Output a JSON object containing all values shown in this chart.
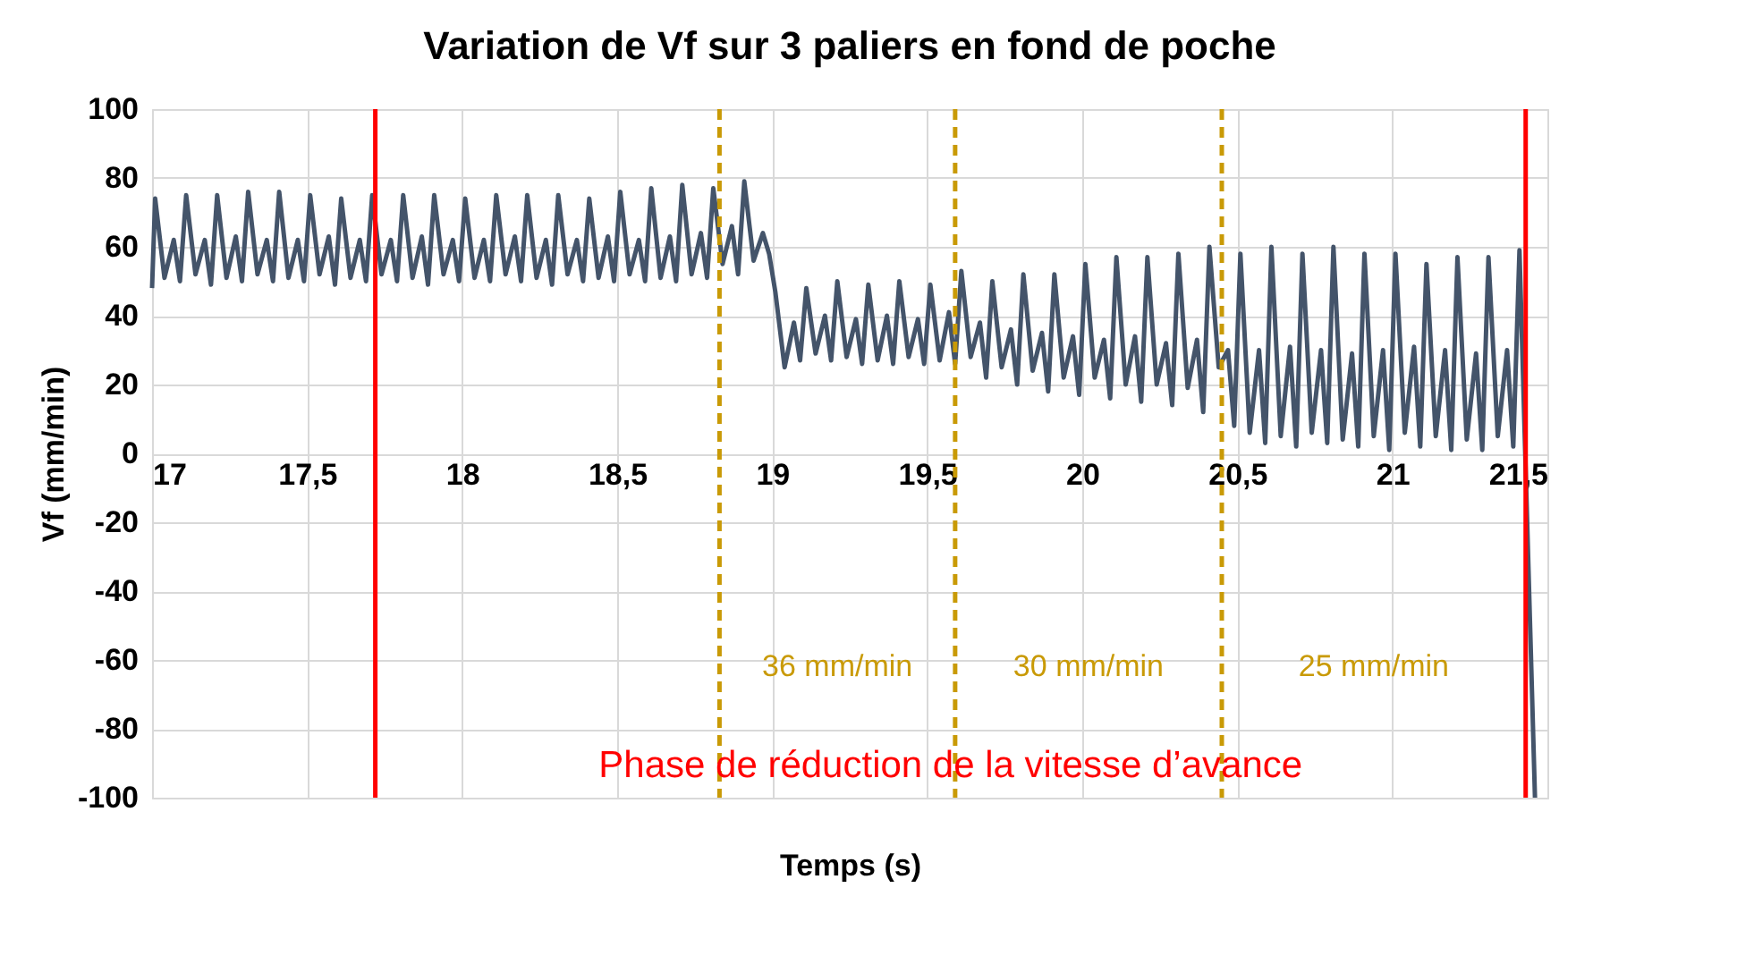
{
  "chart_data": {
    "type": "line",
    "title": "Variation de Vf sur 3 paliers en fond de poche",
    "xlabel": "Temps (s)",
    "ylabel": "Vf (mm/min)",
    "xlim": [
      17,
      21.5
    ],
    "xticks": [
      17,
      {
        "value": 17.5,
        "label": "17,5"
      },
      18,
      {
        "value": 18.5,
        "label": "18,5"
      },
      19,
      {
        "value": 19.5,
        "label": "19,5"
      },
      20,
      {
        "value": 20.5,
        "label": "20,5"
      },
      21,
      {
        "value": 21.5,
        "label": "21,5"
      }
    ],
    "ylim": [
      -100,
      100
    ],
    "yticks": [
      -100,
      -80,
      -60,
      -40,
      -20,
      0,
      20,
      40,
      60,
      80,
      100
    ],
    "grid": true,
    "line_style": "solid",
    "marker": "none",
    "series": [
      {
        "color": "#44546a",
        "x": [
          17.0,
          17.01,
          17.04,
          17.07,
          17.09,
          17.11,
          17.14,
          17.17,
          17.19,
          17.21,
          17.24,
          17.27,
          17.29,
          17.31,
          17.34,
          17.37,
          17.39,
          17.41,
          17.44,
          17.47,
          17.49,
          17.51,
          17.54,
          17.57,
          17.59,
          17.61,
          17.64,
          17.67,
          17.69,
          17.71,
          17.74,
          17.77,
          17.79,
          17.81,
          17.84,
          17.87,
          17.89,
          17.91,
          17.94,
          17.97,
          17.99,
          18.01,
          18.04,
          18.07,
          18.09,
          18.11,
          18.14,
          18.17,
          18.19,
          18.21,
          18.24,
          18.27,
          18.29,
          18.31,
          18.34,
          18.37,
          18.39,
          18.41,
          18.44,
          18.47,
          18.49,
          18.51,
          18.54,
          18.57,
          18.59,
          18.61,
          18.64,
          18.67,
          18.69,
          18.71,
          18.74,
          18.77,
          18.79,
          18.81,
          18.84,
          18.87,
          18.89,
          18.91,
          18.94,
          18.97,
          18.99,
          19.01,
          19.04,
          19.07,
          19.09,
          19.11,
          19.14,
          19.17,
          19.19,
          19.21,
          19.24,
          19.27,
          19.29,
          19.31,
          19.34,
          19.37,
          19.39,
          19.41,
          19.44,
          19.47,
          19.49,
          19.51,
          19.54,
          19.57,
          19.59,
          19.61,
          19.64,
          19.67,
          19.69,
          19.71,
          19.74,
          19.77,
          19.79,
          19.81,
          19.84,
          19.87,
          19.89,
          19.91,
          19.94,
          19.97,
          19.99,
          20.01,
          20.04,
          20.07,
          20.09,
          20.11,
          20.14,
          20.17,
          20.19,
          20.21,
          20.24,
          20.27,
          20.29,
          20.31,
          20.34,
          20.37,
          20.39,
          20.41,
          20.44,
          20.47,
          20.49,
          20.51,
          20.54,
          20.57,
          20.59,
          20.61,
          20.64,
          20.67,
          20.69,
          20.71,
          20.74,
          20.77,
          20.79,
          20.81,
          20.84,
          20.87,
          20.89,
          20.91,
          20.94,
          20.97,
          20.99,
          21.01,
          21.04,
          21.07,
          21.09,
          21.11,
          21.14,
          21.17,
          21.19,
          21.21,
          21.24,
          21.27,
          21.29,
          21.31,
          21.34,
          21.37,
          21.39,
          21.41,
          21.46
        ],
        "values": [
          48,
          74,
          51,
          62,
          50,
          75,
          52,
          62,
          49,
          75,
          51,
          63,
          50,
          76,
          52,
          62,
          50,
          76,
          51,
          62,
          50,
          75,
          52,
          63,
          49,
          74,
          51,
          62,
          50,
          75,
          52,
          62,
          50,
          75,
          51,
          63,
          49,
          75,
          52,
          62,
          50,
          74,
          51,
          62,
          50,
          75,
          52,
          63,
          50,
          75,
          51,
          62,
          49,
          75,
          52,
          62,
          50,
          74,
          51,
          63,
          50,
          76,
          52,
          62,
          50,
          77,
          51,
          63,
          50,
          78,
          52,
          64,
          51,
          77,
          55,
          66,
          52,
          79,
          56,
          64,
          58,
          47,
          25,
          38,
          27,
          48,
          29,
          40,
          27,
          50,
          28,
          39,
          26,
          49,
          27,
          40,
          26,
          50,
          28,
          39,
          26,
          49,
          27,
          41,
          26,
          53,
          28,
          38,
          22,
          50,
          25,
          36,
          20,
          52,
          24,
          35,
          18,
          52,
          22,
          34,
          17,
          55,
          22,
          33,
          16,
          57,
          20,
          34,
          15,
          57,
          20,
          32,
          14,
          58,
          19,
          33,
          12,
          60,
          25,
          30,
          8,
          58,
          6,
          30,
          3,
          60,
          5,
          31,
          2,
          58,
          6,
          30,
          3,
          60,
          4,
          29,
          2,
          58,
          5,
          30,
          1,
          58,
          6,
          31,
          2,
          55,
          5,
          30,
          1,
          57,
          4,
          29,
          1,
          57,
          5,
          30,
          2,
          59,
          -100
        ]
      }
    ],
    "ref_lines": [
      {
        "axis": "x",
        "value": 17.72,
        "color": "#ff0000",
        "line_style": "solid"
      },
      {
        "axis": "x",
        "value": 21.43,
        "color": "#ff0000",
        "line_style": "solid"
      },
      {
        "axis": "x",
        "value": 18.83,
        "color": "#c99a06",
        "line_style": "dashed"
      },
      {
        "axis": "x",
        "value": 19.59,
        "color": "#c99a06",
        "line_style": "dashed"
      },
      {
        "axis": "x",
        "value": 20.45,
        "color": "#c99a06",
        "line_style": "dashed"
      }
    ],
    "annotations": [
      "36 mm/min",
      "30 mm/min",
      "25 mm/min",
      "Phase de réduction de la vitesse d’avance"
    ]
  }
}
